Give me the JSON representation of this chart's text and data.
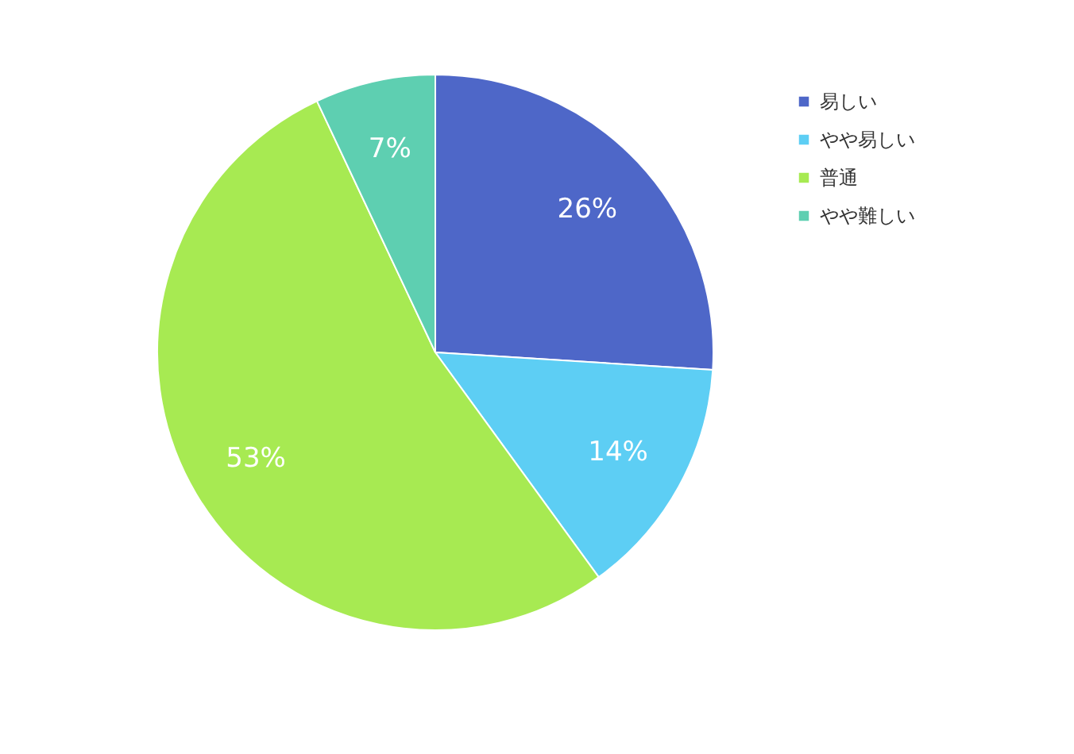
{
  "chart_data": {
    "type": "pie",
    "categories": [
      "易しい",
      "やや易しい",
      "普通",
      "やや難しい"
    ],
    "values": [
      26,
      14,
      53,
      7
    ],
    "value_labels": [
      "26%",
      "14%",
      "53%",
      "7%"
    ],
    "colors": [
      "#4e67c8",
      "#5dcef4",
      "#a7ea52",
      "#5ecfb1"
    ],
    "legend": "top right"
  }
}
